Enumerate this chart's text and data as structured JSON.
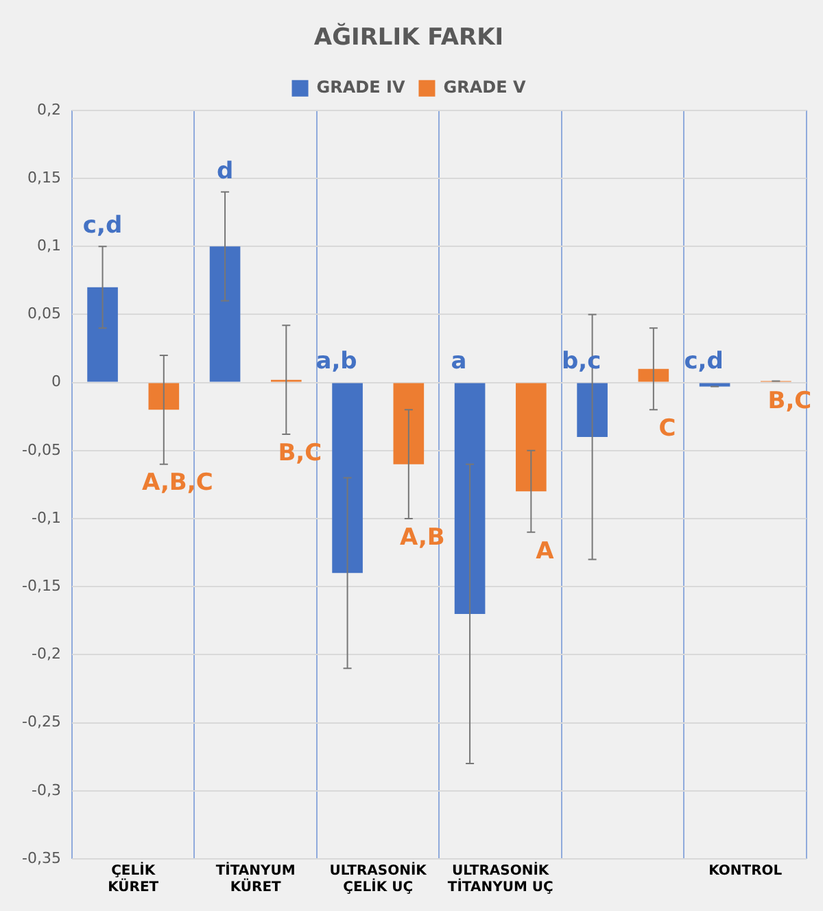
{
  "chart_data": {
    "type": "bar",
    "title": "AĞIRLIK FARKI",
    "categories": [
      "ÇELİK KÜRET",
      "TİTANYUM KÜRET",
      "ULTRASONİK ÇELİK UÇ",
      "ULTRASONİK TİTANYUM UÇ",
      null,
      "KONTROL"
    ],
    "series": [
      {
        "name": "GRADE IV",
        "color": "#4472c4",
        "values": [
          0.07,
          0.1,
          -0.14,
          -0.17,
          -0.04,
          -0.003
        ],
        "errors": [
          0.03,
          0.04,
          0.07,
          0.11,
          0.09,
          0
        ],
        "value_labels": [
          "c,d",
          "d",
          "a,b",
          "a",
          "b,c",
          "c,d"
        ]
      },
      {
        "name": "GRADE V",
        "color": "#ed7d31",
        "values": [
          -0.02,
          0.002,
          -0.06,
          -0.08,
          0.01,
          0.001
        ],
        "errors": [
          0.04,
          0.04,
          0.04,
          0.03,
          0.03,
          0
        ],
        "value_labels": [
          "A,B,C",
          "B,C",
          "A,B",
          "A",
          "C",
          "B,C"
        ]
      }
    ],
    "ylim": [
      -0.35,
      0.2
    ],
    "yticks": [
      {
        "value": -0.35,
        "label": "-0,35"
      },
      {
        "value": -0.3,
        "label": "-0,3"
      },
      {
        "value": -0.25,
        "label": "-0,25"
      },
      {
        "value": -0.2,
        "label": "-0,2"
      },
      {
        "value": -0.15,
        "label": "-0,15"
      },
      {
        "value": -0.1,
        "label": "-0,1"
      },
      {
        "value": -0.05,
        "label": "-0,05"
      },
      {
        "value": 0,
        "label": "0"
      },
      {
        "value": 0.05,
        "label": "0,05"
      },
      {
        "value": 0.1,
        "label": "0,1"
      },
      {
        "value": 0.15,
        "label": "0,15"
      },
      {
        "value": 0.2,
        "label": "0,2"
      }
    ],
    "grid": true,
    "legend": "top"
  }
}
